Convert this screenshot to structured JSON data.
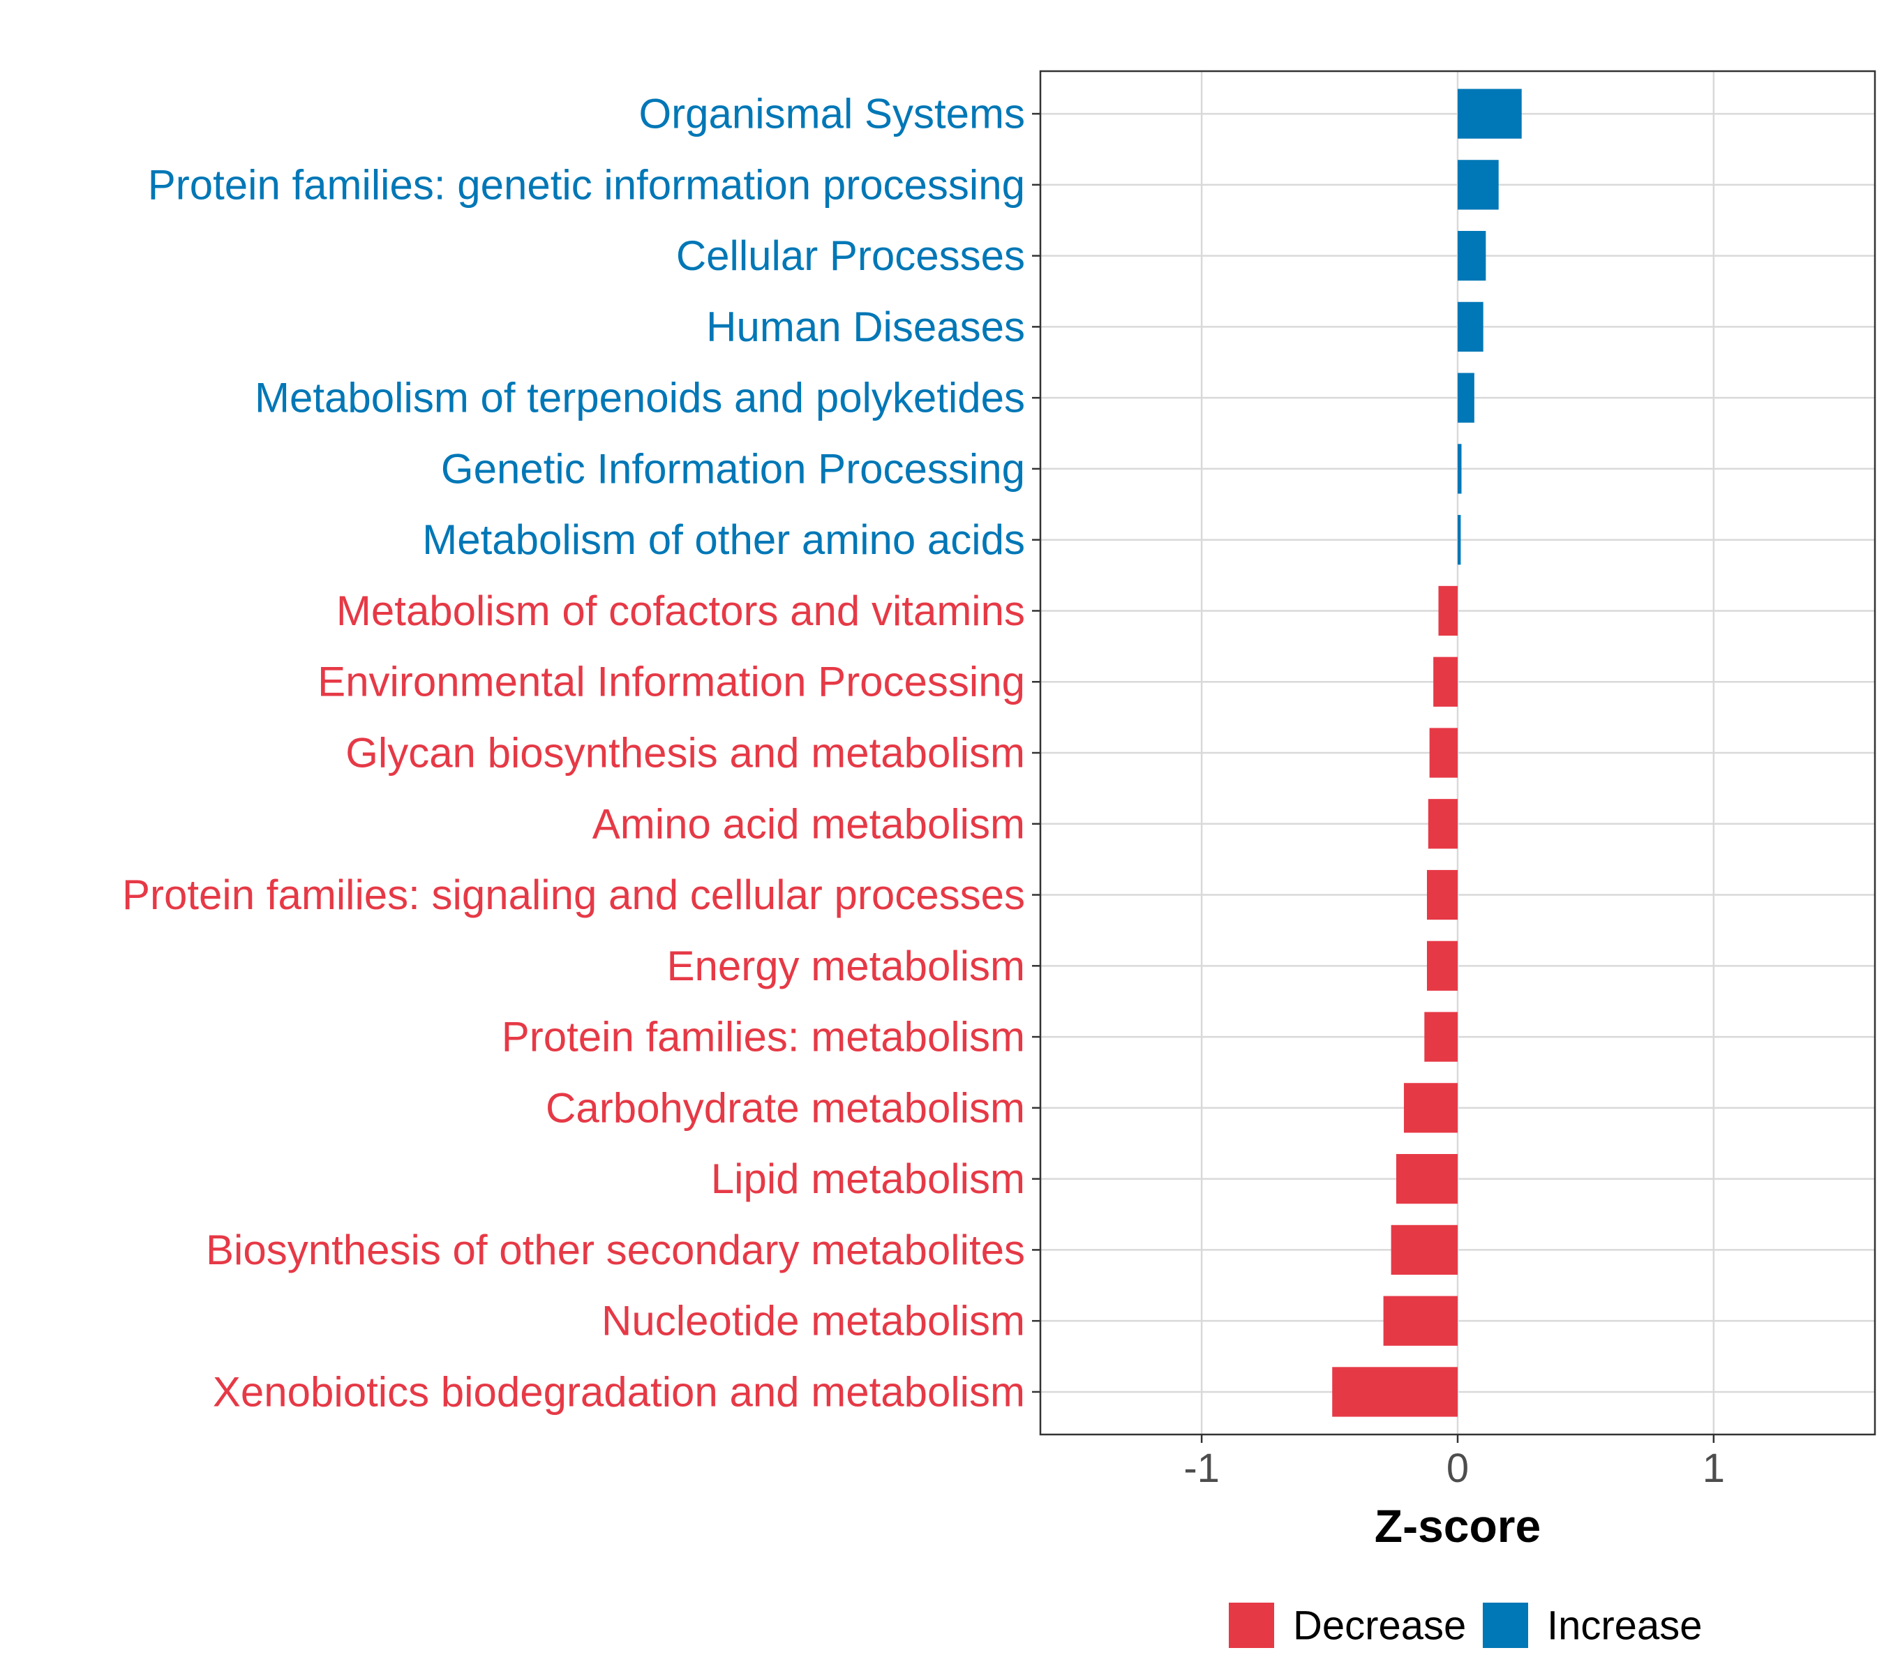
{
  "chart_data": {
    "type": "bar",
    "orientation": "horizontal",
    "title": "",
    "xlabel": "Z-score",
    "ylabel": "",
    "xlim": [
      -1.63,
      1.63
    ],
    "xticks": [
      -1,
      0,
      1
    ],
    "xtick_labels": [
      "-1",
      "0",
      "1"
    ],
    "grid": true,
    "legend_position": "bottom",
    "legend": [
      {
        "name": "Decrease",
        "color": "#E63946"
      },
      {
        "name": "Increase",
        "color": "#0077B6"
      }
    ],
    "colors": {
      "Decrease": "#E63946",
      "Increase": "#0077B6"
    },
    "categories": [
      "Organismal Systems",
      "Protein families: genetic information processing",
      "Cellular Processes",
      "Human Diseases",
      "Metabolism of terpenoids and polyketides",
      "Genetic Information Processing",
      "Metabolism of other amino acids",
      "Metabolism of cofactors and vitamins",
      "Environmental Information Processing",
      "Glycan biosynthesis and metabolism",
      "Amino acid metabolism",
      "Protein families: signaling and cellular processes",
      "Energy metabolism",
      "Protein families: metabolism",
      "Carbohydrate metabolism",
      "Lipid metabolism",
      "Biosynthesis of other secondary metabolites",
      "Nucleotide metabolism",
      "Xenobiotics biodegradation and metabolism"
    ],
    "values": [
      0.25,
      0.16,
      0.11,
      0.1,
      0.065,
      0.015,
      0.012,
      -0.075,
      -0.095,
      -0.11,
      -0.115,
      -0.12,
      -0.12,
      -0.13,
      -0.21,
      -0.24,
      -0.26,
      -0.29,
      -0.49
    ],
    "groups": [
      "Increase",
      "Increase",
      "Increase",
      "Increase",
      "Increase",
      "Increase",
      "Increase",
      "Decrease",
      "Decrease",
      "Decrease",
      "Decrease",
      "Decrease",
      "Decrease",
      "Decrease",
      "Decrease",
      "Decrease",
      "Decrease",
      "Decrease",
      "Decrease"
    ]
  }
}
